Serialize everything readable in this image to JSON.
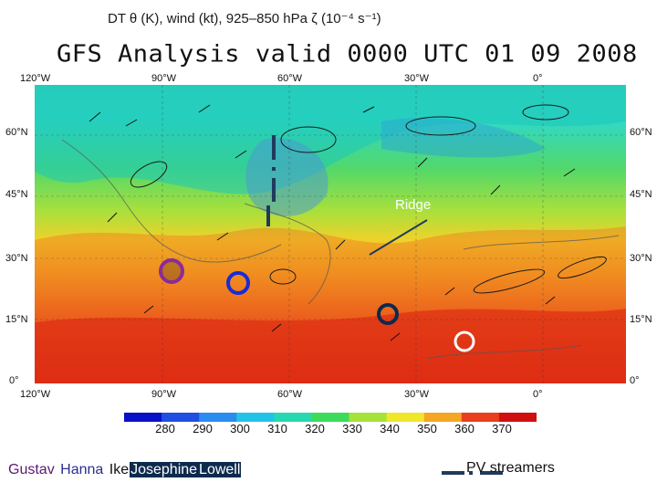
{
  "caption": "DT θ (K), wind (kt), 925–850 hPa ζ (10⁻⁴ s⁻¹)",
  "map_title": "GFS Analysis valid 0000 UTC 01 09 2008",
  "axes": {
    "lon_top": [
      "120°W",
      "90°W",
      "60°W",
      "30°W",
      "0°"
    ],
    "lon_bottom": [
      "120°W",
      "90°W",
      "60°W",
      "30°W",
      "0°"
    ],
    "lat_left": [
      "60°N",
      "45°N",
      "30°N",
      "15°N",
      "0°"
    ],
    "lat_right": [
      "60°N",
      "45°N",
      "30°N",
      "15°N",
      "0°"
    ]
  },
  "annotation": {
    "ridge": "Ridge"
  },
  "colorbar": {
    "labels": [
      "280",
      "290",
      "300",
      "310",
      "320",
      "330",
      "340",
      "350",
      "360",
      "370"
    ],
    "colors": [
      "#0a10c8",
      "#1f4fe0",
      "#2a8cf0",
      "#22c3e8",
      "#27d8b0",
      "#3cdc5a",
      "#a6e23a",
      "#f0e62a",
      "#f5a623",
      "#e8401c",
      "#d01010"
    ]
  },
  "legend": {
    "storms": [
      {
        "name": "Gustav",
        "color": "#5b1a70"
      },
      {
        "name": "Hanna",
        "color": "#2b2f8f"
      },
      {
        "name": "Ike",
        "color": "#111111"
      },
      {
        "name": "Josephine",
        "color": "#ffffff"
      },
      {
        "name": "Lowell",
        "color": "#ffffff"
      }
    ],
    "pv_streamers": "PV streamers"
  },
  "colors": {
    "gustav_circle": "#8b2a9b",
    "hanna_circle": "#1a2bd6",
    "ike_circle": "#0d2a4d",
    "josephine_circle": "#ffffff",
    "pv_streamer": "#1f3b5c"
  }
}
